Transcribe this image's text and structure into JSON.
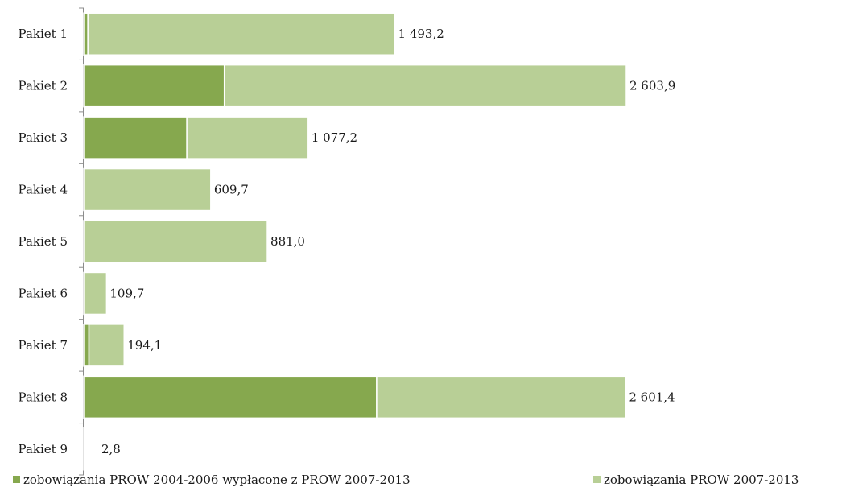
{
  "chart_data": {
    "type": "bar",
    "orientation": "horizontal",
    "stacked": true,
    "categories": [
      "Pakiet 1",
      "Pakiet 2",
      "Pakiet 3",
      "Pakiet 4",
      "Pakiet 5",
      "Pakiet 6",
      "Pakiet 7",
      "Pakiet 8",
      "Pakiet 9"
    ],
    "series": [
      {
        "name": "zobowiązania PROW 2004-2006 wypłacone z PROW 2007-2013",
        "color": "#86a84e",
        "values": [
          20,
          675,
          495,
          0,
          0,
          0,
          25,
          1406,
          0
        ]
      },
      {
        "name": "zobowiązania PROW 2007-2013",
        "color": "#b8cf96",
        "values": [
          1473.2,
          1928.9,
          582.2,
          609.7,
          881.0,
          109.7,
          169.1,
          1195.4,
          2.8
        ]
      }
    ],
    "totals_labels": [
      "1 493,2",
      "2 603,9",
      "1 077,2",
      "609,7",
      "881,0",
      "109,7",
      "194,1",
      "2 601,4",
      "2,8"
    ],
    "totals": [
      1493.2,
      2603.9,
      1077.2,
      609.7,
      881.0,
      109.7,
      194.1,
      2601.4,
      2.8
    ],
    "xlim": [
      0,
      2603.9
    ],
    "legend_position": "bottom",
    "grid": false
  }
}
